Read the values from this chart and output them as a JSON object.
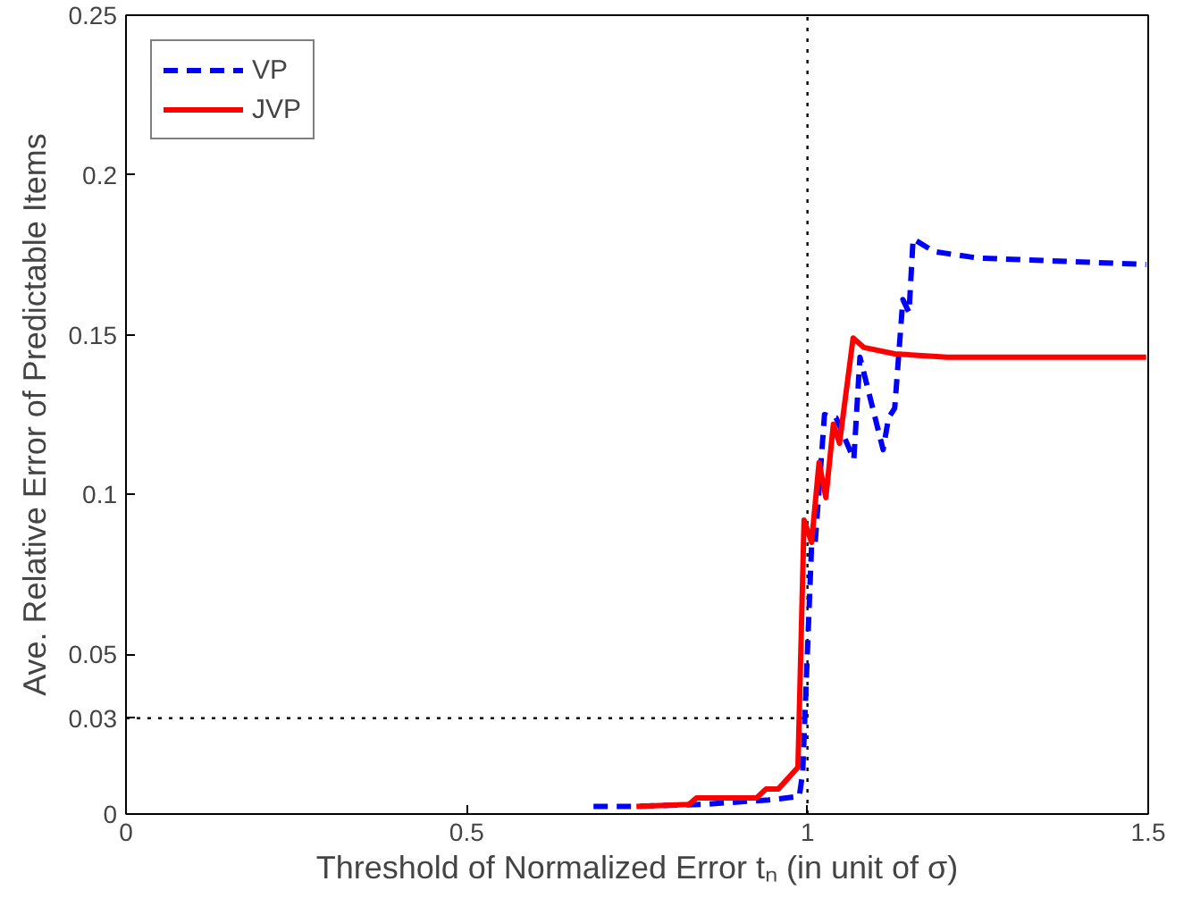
{
  "chart_data": {
    "type": "line",
    "xlabel": "Threshold of Normalized Error tₙ (in unit of σ)",
    "ylabel": "Ave. Relative Error of Predictable Items",
    "xlim": [
      0,
      1.5
    ],
    "ylim": [
      0,
      0.25
    ],
    "xticks": [
      0,
      0.5,
      1,
      1.5
    ],
    "yticks": [
      0,
      0.03,
      0.05,
      0.1,
      0.15,
      0.2,
      0.25
    ],
    "grid": false,
    "legend": "top left",
    "marker": "none",
    "ref_lines": [
      {
        "axis": "x",
        "value": 1,
        "line_style": "dotted",
        "color": "#000000"
      },
      {
        "axis": "y",
        "value": 0.03,
        "line_style": "dotted",
        "color": "#000000"
      }
    ],
    "series": [
      {
        "name": "VP",
        "color": "#0000ff",
        "line_style": "dashed",
        "x": [
          0.686,
          0.745,
          0.844,
          0.943,
          0.988,
          0.993,
          1.006,
          1.011,
          1.025,
          1.042,
          1.068,
          1.077,
          1.111,
          1.119,
          1.128,
          1.14,
          1.149,
          1.155,
          1.186,
          1.25,
          1.497
        ],
        "values": [
          0.0024,
          0.0024,
          0.003,
          0.0044,
          0.0055,
          0.013,
          0.084,
          0.084,
          0.125,
          0.124,
          0.111,
          0.143,
          0.114,
          0.124,
          0.127,
          0.161,
          0.157,
          0.18,
          0.176,
          0.174,
          0.172
        ]
      },
      {
        "name": "JVP",
        "color": "#ff0000",
        "line_style": "solid",
        "x": [
          0.749,
          0.826,
          0.837,
          0.925,
          0.939,
          0.957,
          0.986,
          0.995,
          1.006,
          1.017,
          1.027,
          1.038,
          1.047,
          1.067,
          1.083,
          1.128,
          1.205,
          1.497
        ],
        "values": [
          0.0024,
          0.003,
          0.005,
          0.005,
          0.0078,
          0.0078,
          0.0146,
          0.092,
          0.085,
          0.11,
          0.099,
          0.122,
          0.116,
          0.149,
          0.146,
          0.144,
          0.143,
          0.143
        ]
      }
    ]
  }
}
